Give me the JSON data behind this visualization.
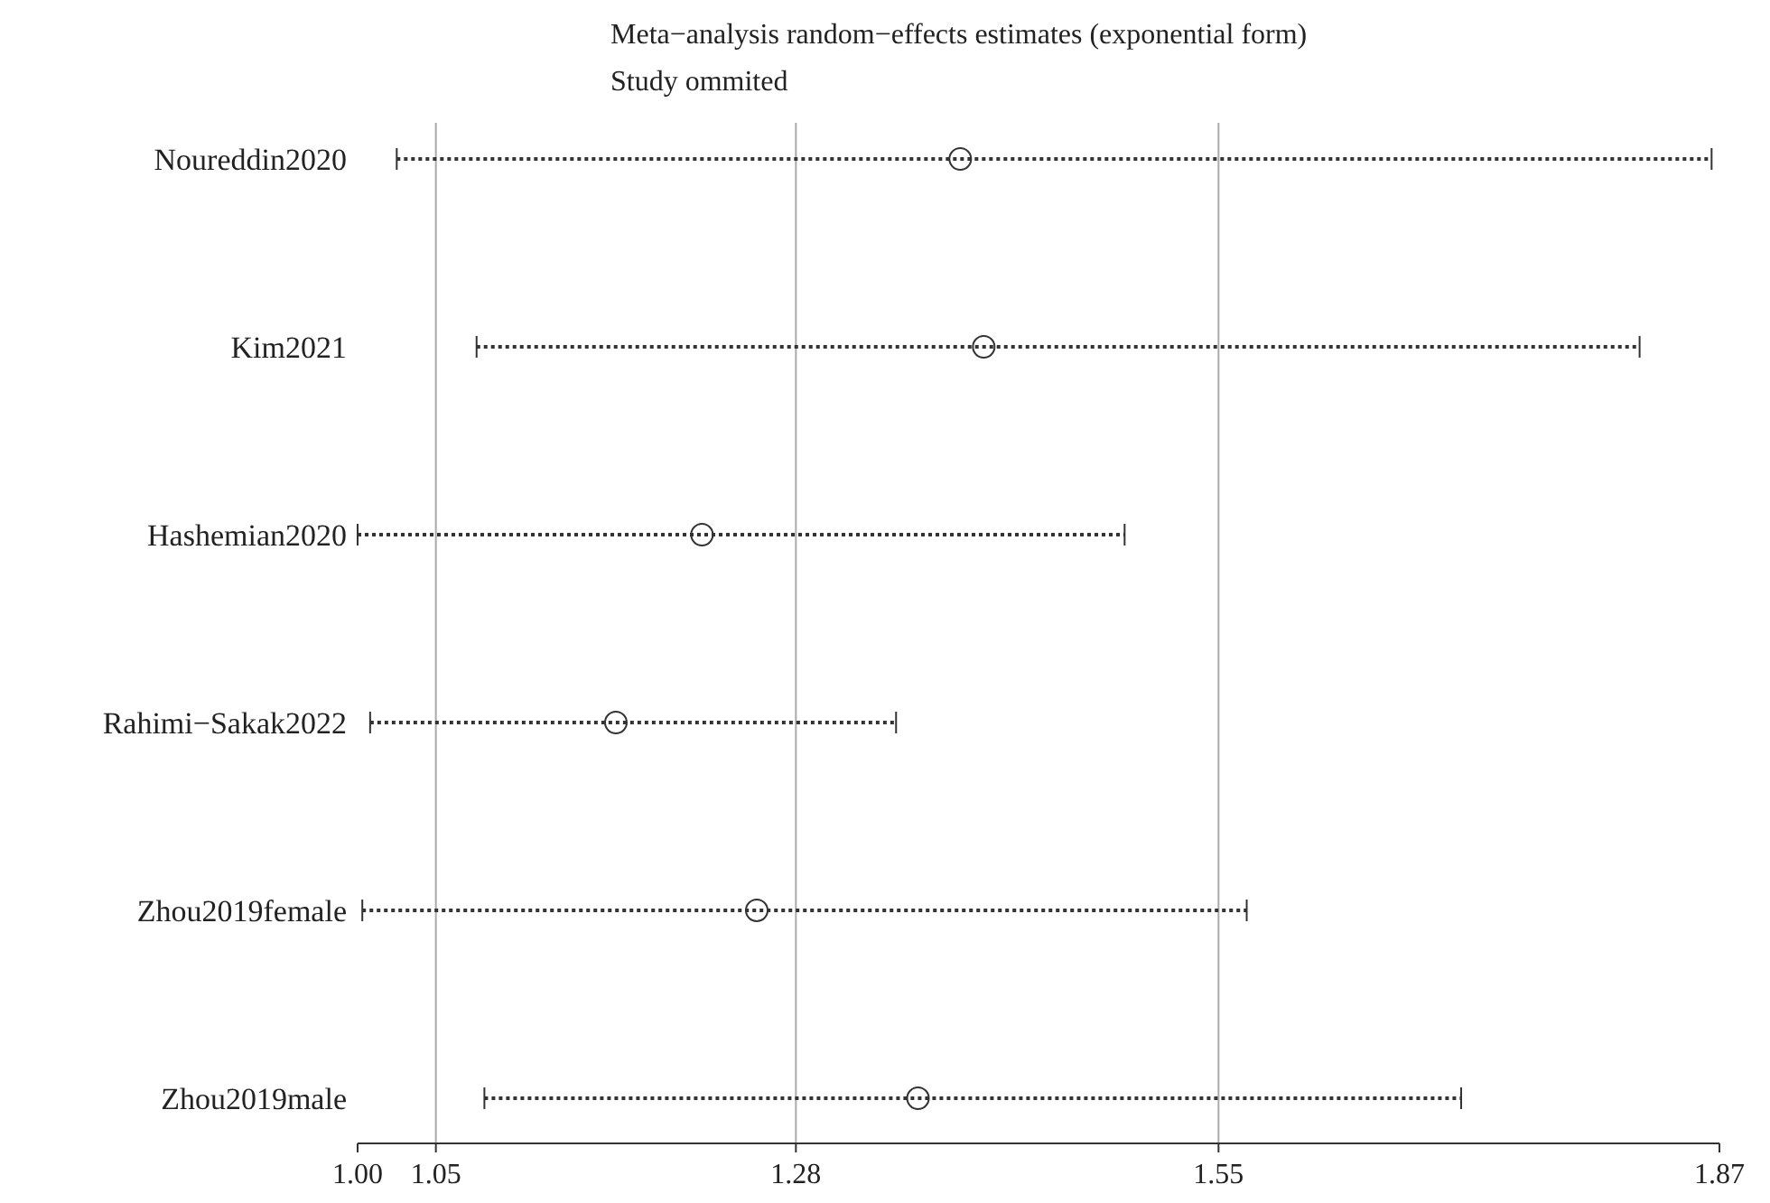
{
  "chart_data": {
    "type": "scatter",
    "title": "Meta−analysis random−effects estimates (exponential form)",
    "subtitle": "Study ommited",
    "categories": [
      "Noureddin2020",
      "Kim2021",
      "Hashemian2020",
      "Rahimi−Sakak2022",
      "Zhou2019female",
      "Zhou2019male"
    ],
    "orientation": "horizontal",
    "values": [
      1.385,
      1.4,
      1.22,
      1.165,
      1.255,
      1.358
    ],
    "errors": [
      [
        1.025,
        1.865
      ],
      [
        1.076,
        1.819
      ],
      [
        1.0,
        1.49
      ],
      [
        1.008,
        1.344
      ],
      [
        1.003,
        1.568
      ],
      [
        1.081,
        1.705
      ]
    ],
    "color": "#333333",
    "marker": "circle",
    "line_style": "dotted",
    "xlim": [
      1.0,
      1.87
    ],
    "xticks": [
      {
        "value": 1.0,
        "label": "1.00"
      },
      1.05,
      1.28,
      1.55,
      1.87
    ],
    "ref_lines": [
      {
        "axis": "x",
        "value": 1.05,
        "color": "#aaaaaa"
      },
      {
        "axis": "x",
        "value": 1.28,
        "color": "#aaaaaa"
      },
      {
        "axis": "x",
        "value": 1.55,
        "color": "#aaaaaa"
      }
    ],
    "grid": false
  }
}
